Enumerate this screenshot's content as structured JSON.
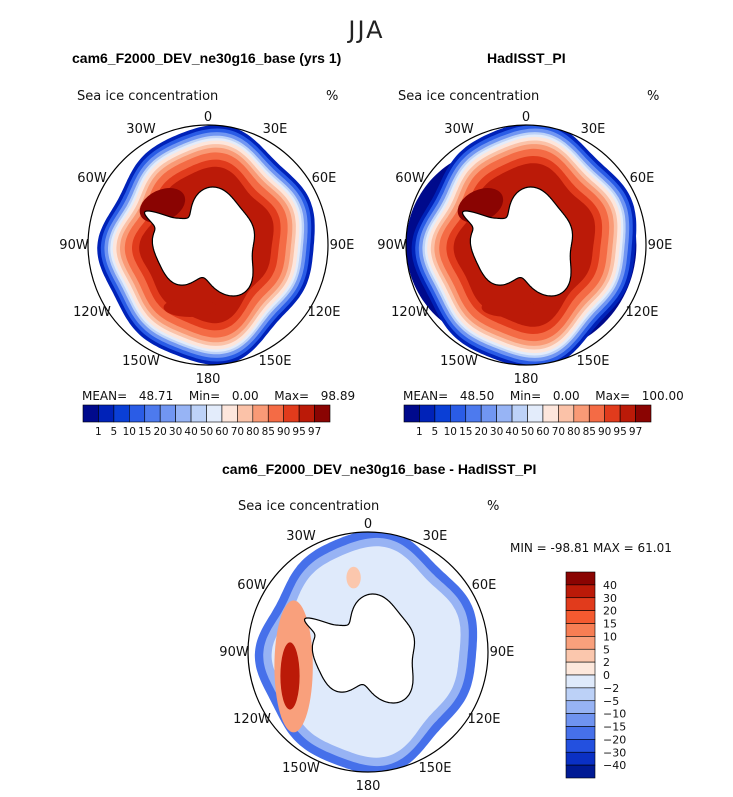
{
  "figure": {
    "season_title": "JJA"
  },
  "panels": [
    {
      "title": "cam6_F2000_DEV_ne30g16_base (yrs 1)",
      "variable": "Sea ice concentration",
      "units": "%",
      "stats": {
        "mean_label": "MEAN=",
        "mean": "48.71",
        "min_label": "Min=",
        "min": "0.00",
        "max_label": "Max=",
        "max": "98.89"
      }
    },
    {
      "title": "HadISST_PI",
      "variable": "Sea ice concentration",
      "units": "%",
      "stats": {
        "mean_label": "MEAN=",
        "mean": "48.50",
        "min_label": "Min=",
        "min": "0.00",
        "max_label": "Max=",
        "max": "100.00"
      }
    },
    {
      "title": "cam6_F2000_DEV_ne30g16_base - HadISST_PI",
      "variable": "Sea ice concentration",
      "units": "%",
      "minmax_text": "MIN = -98.81  MAX =  61.01"
    }
  ],
  "lon_labels": [
    "0",
    "30E",
    "60E",
    "90E",
    "120E",
    "150E",
    "180",
    "150W",
    "120W",
    "90W",
    "60W",
    "30W"
  ],
  "colorbar_abs": {
    "labels": [
      "1",
      "5",
      "10",
      "15",
      "20",
      "30",
      "40",
      "50",
      "60",
      "70",
      "80",
      "85",
      "90",
      "95",
      "97"
    ],
    "colors": [
      "#000a8c",
      "#0022b8",
      "#0a3fd6",
      "#2a5ce6",
      "#4d7aee",
      "#7196f2",
      "#97b4f5",
      "#bdd2f8",
      "#e3ecfb",
      "#fde6dc",
      "#fbc2a8",
      "#f99a76",
      "#f46b45",
      "#e13b1c",
      "#bb1a08",
      "#8a0402"
    ]
  },
  "colorbar_diff": {
    "labels": [
      "40",
      "30",
      "20",
      "15",
      "10",
      "5",
      "2",
      "0",
      "−2",
      "−5",
      "−10",
      "−15",
      "−20",
      "−30",
      "−40"
    ],
    "colors": [
      "#8a0402",
      "#bb1a08",
      "#e13b1c",
      "#f45a30",
      "#f77e54",
      "#f9a07c",
      "#fbc7ad",
      "#fde8dc",
      "#dfeafb",
      "#bcd1f7",
      "#97b3f4",
      "#6f93f0",
      "#4670ea",
      "#2350df",
      "#0a30c4",
      "#001a94"
    ]
  }
}
